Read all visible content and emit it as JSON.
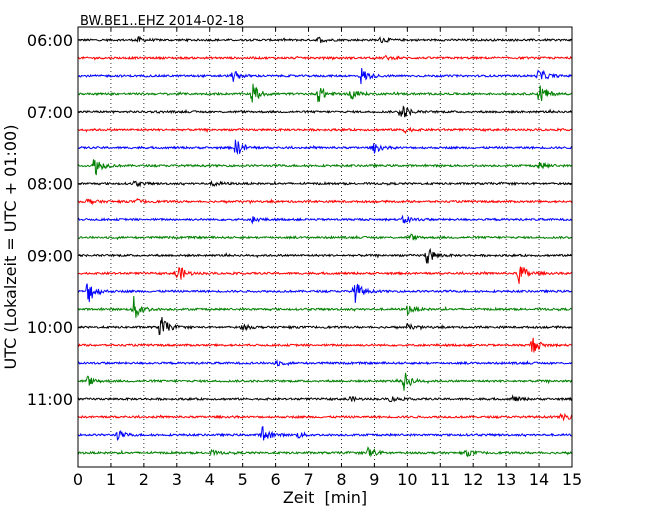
{
  "chart_data": {
    "type": "line",
    "title": "BW.BE1..EHZ 2014-02-18",
    "xlabel": "Zeit  [min]",
    "ylabel": "UTC (Lokalzeit = UTC + 01:00)",
    "xlim": [
      0,
      15
    ],
    "x_ticks": [
      "0",
      "1",
      "2",
      "3",
      "4",
      "5",
      "6",
      "7",
      "8",
      "9",
      "10",
      "11",
      "12",
      "13",
      "14",
      "15"
    ],
    "y_tick_labels": [
      {
        "row": 0,
        "label": "06:00"
      },
      {
        "row": 4,
        "label": "07:00"
      },
      {
        "row": 8,
        "label": "08:00"
      },
      {
        "row": 12,
        "label": "09:00"
      },
      {
        "row": 16,
        "label": "10:00"
      },
      {
        "row": 20,
        "label": "11:00"
      }
    ],
    "vertical_gridlines": "dotted",
    "row_minutes": 15,
    "color_cycle": [
      "#000000",
      "#ff0000",
      "#0000ff",
      "#008000"
    ],
    "series": [
      {
        "start": "06:00",
        "color": "#000000",
        "events": [
          [
            1.8,
            0.3
          ],
          [
            7.3,
            0.3
          ],
          [
            9.2,
            0.3
          ]
        ]
      },
      {
        "start": "06:15",
        "color": "#ff0000",
        "events": [
          [
            9.3,
            0.2
          ]
        ]
      },
      {
        "start": "06:30",
        "color": "#0000ff",
        "events": [
          [
            4.7,
            0.6
          ],
          [
            8.6,
            0.9
          ],
          [
            14.0,
            0.8
          ]
        ]
      },
      {
        "start": "06:45",
        "color": "#008000",
        "events": [
          [
            5.3,
            1.1
          ],
          [
            7.3,
            0.9
          ],
          [
            8.3,
            0.6
          ],
          [
            14.0,
            1.2
          ]
        ]
      },
      {
        "start": "07:00",
        "color": "#000000",
        "events": [
          [
            9.8,
            1.0
          ]
        ]
      },
      {
        "start": "07:15",
        "color": "#ff0000",
        "events": [
          [
            9.9,
            0.3
          ]
        ]
      },
      {
        "start": "07:30",
        "color": "#0000ff",
        "events": [
          [
            4.8,
            1.0
          ],
          [
            9.0,
            0.5
          ]
        ]
      },
      {
        "start": "07:45",
        "color": "#008000",
        "events": [
          [
            0.5,
            1.1
          ],
          [
            14.0,
            0.4
          ]
        ]
      },
      {
        "start": "08:00",
        "color": "#000000",
        "events": [
          [
            1.7,
            0.3
          ],
          [
            4.1,
            0.3
          ]
        ]
      },
      {
        "start": "08:15",
        "color": "#ff0000",
        "events": [
          [
            0.3,
            0.3
          ],
          [
            1.8,
            0.2
          ]
        ]
      },
      {
        "start": "08:30",
        "color": "#0000ff",
        "events": [
          [
            5.3,
            0.3
          ],
          [
            9.9,
            0.5
          ]
        ]
      },
      {
        "start": "08:45",
        "color": "#008000",
        "events": [
          [
            10.1,
            0.3
          ]
        ]
      },
      {
        "start": "09:00",
        "color": "#000000",
        "events": [
          [
            10.6,
            1.0
          ]
        ]
      },
      {
        "start": "09:15",
        "color": "#ff0000",
        "events": [
          [
            3.0,
            1.1
          ],
          [
            13.4,
            1.2
          ]
        ]
      },
      {
        "start": "09:30",
        "color": "#0000ff",
        "events": [
          [
            0.3,
            1.4
          ],
          [
            8.4,
            1.2
          ]
        ]
      },
      {
        "start": "09:45",
        "color": "#008000",
        "events": [
          [
            1.7,
            1.4
          ],
          [
            10.0,
            0.5
          ]
        ]
      },
      {
        "start": "10:00",
        "color": "#000000",
        "events": [
          [
            2.5,
            1.3
          ],
          [
            5.0,
            0.3
          ],
          [
            10.0,
            0.3
          ]
        ]
      },
      {
        "start": "10:15",
        "color": "#ff0000",
        "events": [
          [
            13.8,
            0.9
          ]
        ]
      },
      {
        "start": "10:30",
        "color": "#0000ff",
        "events": [
          [
            6.0,
            0.3
          ]
        ]
      },
      {
        "start": "10:45",
        "color": "#008000",
        "events": [
          [
            0.3,
            0.5
          ],
          [
            9.9,
            1.0
          ]
        ]
      },
      {
        "start": "11:00",
        "color": "#000000",
        "events": [
          [
            8.2,
            0.3
          ],
          [
            9.5,
            0.3
          ],
          [
            13.2,
            0.3
          ]
        ]
      },
      {
        "start": "11:15",
        "color": "#ff0000",
        "events": [
          [
            14.7,
            0.4
          ]
        ]
      },
      {
        "start": "11:30",
        "color": "#0000ff",
        "events": [
          [
            1.2,
            0.5
          ],
          [
            5.6,
            1.0
          ],
          [
            6.7,
            0.3
          ]
        ]
      },
      {
        "start": "11:45",
        "color": "#008000",
        "events": [
          [
            4.0,
            0.3
          ],
          [
            8.8,
            0.9
          ],
          [
            11.8,
            0.3
          ]
        ]
      }
    ]
  }
}
